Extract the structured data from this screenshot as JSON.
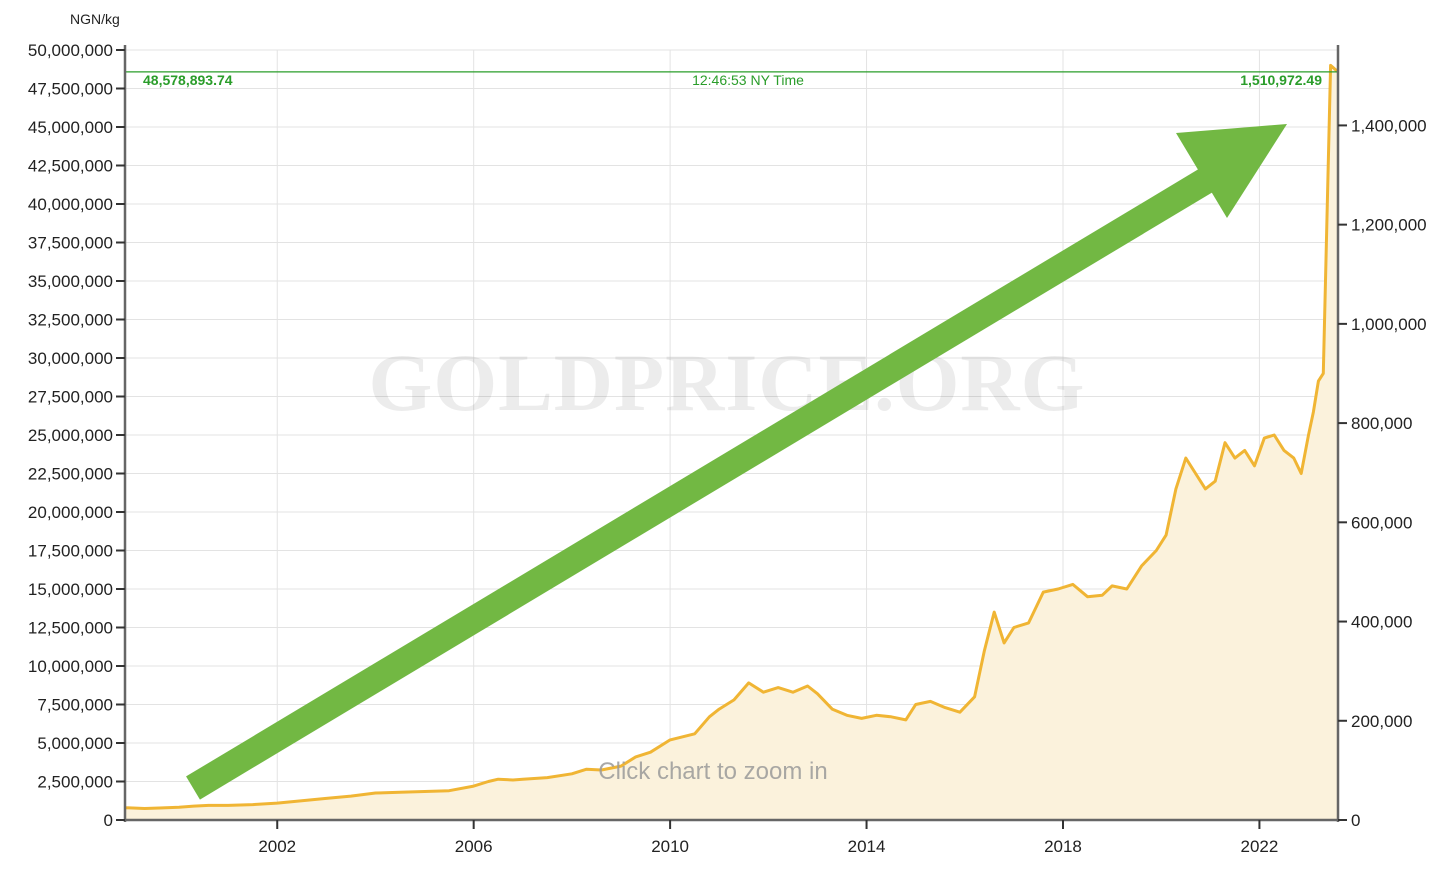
{
  "chart_data": {
    "type": "area",
    "unit_label": "NGN/kg",
    "watermark": "GOLDPRICE.ORG",
    "zoom_hint": "Click chart to zoom in",
    "current_price_left": "48,578,893.74",
    "current_time": "12:46:53 NY Time",
    "current_price_right": "1,510,972.49",
    "current_value": 48578893.74,
    "xlim": [
      1998.9,
      2023.6
    ],
    "x_ticks": [
      "2002",
      "2006",
      "2010",
      "2014",
      "2018",
      "2022"
    ],
    "ylim_left": [
      0,
      50000000
    ],
    "y_ticks_left": [
      "0",
      "2,500,000",
      "5,000,000",
      "7,500,000",
      "10,000,000",
      "12,500,000",
      "15,000,000",
      "17,500,000",
      "20,000,000",
      "22,500,000",
      "25,000,000",
      "27,500,000",
      "30,000,000",
      "32,500,000",
      "35,000,000",
      "37,500,000",
      "40,000,000",
      "42,500,000",
      "45,000,000",
      "47,500,000",
      "50,000,000"
    ],
    "ylim_right": [
      0,
      1552000
    ],
    "y_ticks_right": [
      "0",
      "200,000",
      "400,000",
      "600,000",
      "800,000",
      "1,000,000",
      "1,200,000",
      "1,400,000"
    ],
    "grid": true,
    "series": [
      {
        "color": "#f0b534",
        "fill": "#fbf2dc",
        "x": [
          1998.9,
          1999.3,
          1999.6,
          2000.0,
          2000.3,
          2000.6,
          2001.0,
          2001.5,
          2002.0,
          2002.5,
          2003.0,
          2003.5,
          2004.0,
          2004.5,
          2005.0,
          2005.5,
          2006.0,
          2006.3,
          2006.5,
          2006.8,
          2007.0,
          2007.5,
          2008.0,
          2008.3,
          2008.6,
          2009.0,
          2009.3,
          2009.6,
          2010.0,
          2010.5,
          2010.8,
          2011.0,
          2011.3,
          2011.6,
          2011.9,
          2012.2,
          2012.5,
          2012.8,
          2013.0,
          2013.3,
          2013.6,
          2013.9,
          2014.2,
          2014.5,
          2014.8,
          2015.0,
          2015.3,
          2015.6,
          2015.9,
          2016.2,
          2016.4,
          2016.6,
          2016.8,
          2017.0,
          2017.3,
          2017.6,
          2017.9,
          2018.2,
          2018.5,
          2018.8,
          2019.0,
          2019.3,
          2019.6,
          2019.9,
          2020.1,
          2020.3,
          2020.5,
          2020.7,
          2020.9,
          2021.1,
          2021.3,
          2021.5,
          2021.7,
          2021.9,
          2022.1,
          2022.3,
          2022.5,
          2022.7,
          2022.85,
          2023.0,
          2023.1,
          2023.2,
          2023.3,
          2023.45,
          2023.6
        ],
        "values": [
          800000,
          750000,
          780000,
          830000,
          900000,
          950000,
          950000,
          1000000,
          1100000,
          1250000,
          1400000,
          1550000,
          1750000,
          1800000,
          1850000,
          1900000,
          2200000,
          2500000,
          2650000,
          2600000,
          2650000,
          2750000,
          3000000,
          3300000,
          3250000,
          3500000,
          4100000,
          4400000,
          5200000,
          5600000,
          6700000,
          7200000,
          7800000,
          8900000,
          8300000,
          8600000,
          8300000,
          8700000,
          8200000,
          7200000,
          6800000,
          6600000,
          6800000,
          6700000,
          6500000,
          7500000,
          7700000,
          7300000,
          7000000,
          8000000,
          11000000,
          13500000,
          11500000,
          12500000,
          12800000,
          14800000,
          15000000,
          15300000,
          14500000,
          14600000,
          15200000,
          15000000,
          16500000,
          17500000,
          18500000,
          21500000,
          23500000,
          22500000,
          21500000,
          22000000,
          24500000,
          23500000,
          24000000,
          23000000,
          24800000,
          25000000,
          24000000,
          23500000,
          22500000,
          25000000,
          26500000,
          28500000,
          29000000,
          49000000,
          48578893.74
        ]
      }
    ]
  }
}
